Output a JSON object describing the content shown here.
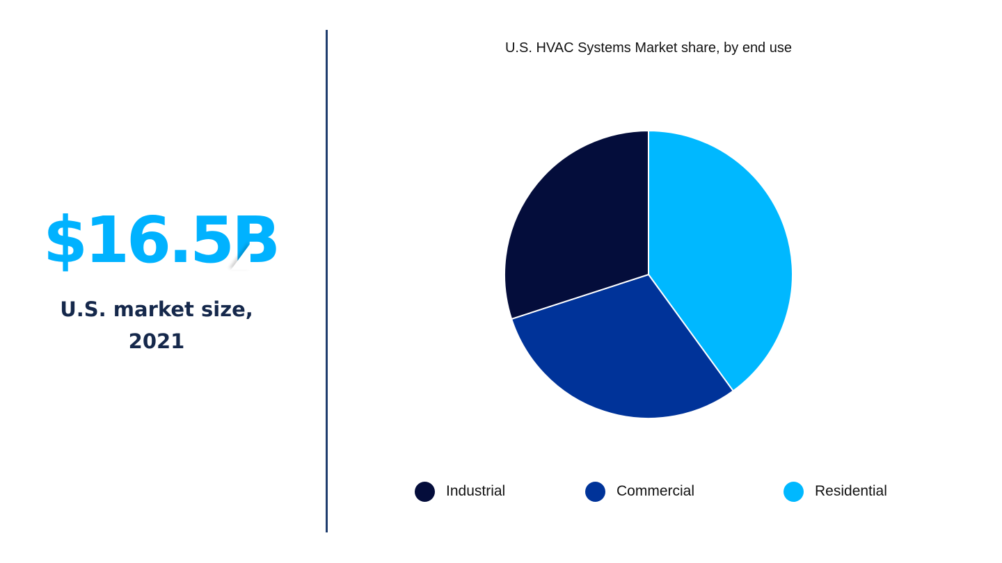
{
  "stat": {
    "value": "$16.5B",
    "label_line1": "U.S. market size,",
    "label_line2": "2021",
    "value_color": "#00b2ff",
    "label_color": "#15284b"
  },
  "divider_color": "#1f3d6e",
  "chart_data": {
    "type": "pie",
    "title": "U.S. HVAC Systems Market share, by end use",
    "categories": [
      "Industrial",
      "Commercial",
      "Residential"
    ],
    "values": [
      30,
      30,
      40
    ],
    "unit": "% share (estimated from slice angles)",
    "colors": [
      "#040d3b",
      "#003399",
      "#00b8ff"
    ],
    "start_angle": "12 o'clock, Residential first clockwise",
    "legend_position": "bottom",
    "data_labels": false
  },
  "legend": {
    "items": [
      {
        "label": "Industrial",
        "color": "#040d3b"
      },
      {
        "label": "Commercial",
        "color": "#003399"
      },
      {
        "label": "Residential",
        "color": "#00b8ff"
      }
    ]
  }
}
